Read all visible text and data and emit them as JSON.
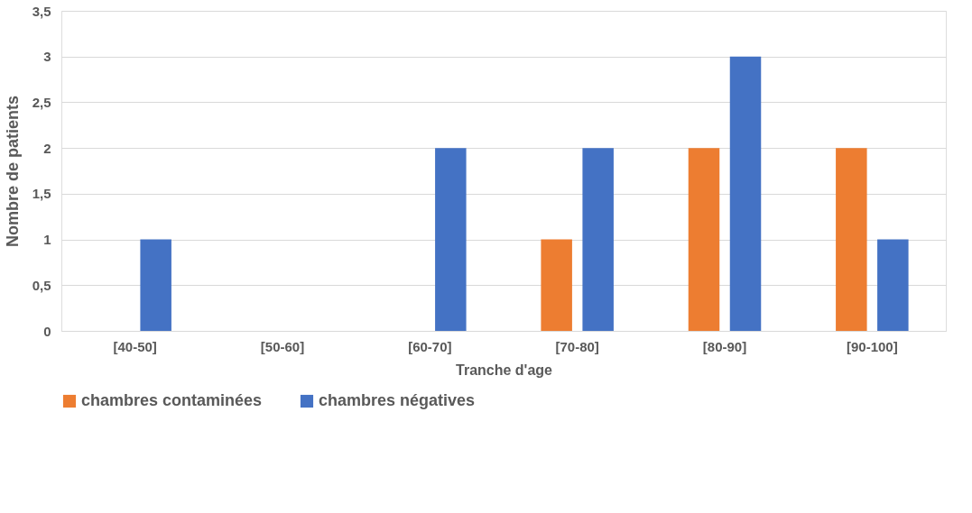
{
  "chart_data": {
    "type": "bar",
    "xlabel": "Tranche d'age",
    "ylabel": "Nombre de patients",
    "categories": [
      "[40-50]",
      "[50-60]",
      "[60-70]",
      "[70-80]",
      "[80-90]",
      "[90-100]"
    ],
    "series": [
      {
        "name": "chambres contaminées",
        "color": "#ed7d31",
        "values": [
          0,
          0,
          0,
          1,
          2,
          2
        ]
      },
      {
        "name": "chambres négatives",
        "color": "#4472c4",
        "values": [
          1,
          0,
          2,
          2,
          3,
          1
        ]
      }
    ],
    "ylim": [
      0,
      3.5
    ],
    "yticks": [
      0,
      {
        "value": 0.5,
        "label": "0,5"
      },
      1,
      {
        "value": 1.5,
        "label": "1,5"
      },
      2,
      {
        "value": 2.5,
        "label": "2,5"
      },
      3,
      {
        "value": 3.5,
        "label": "3,5"
      }
    ],
    "grid": "y",
    "legend": "bottom"
  }
}
